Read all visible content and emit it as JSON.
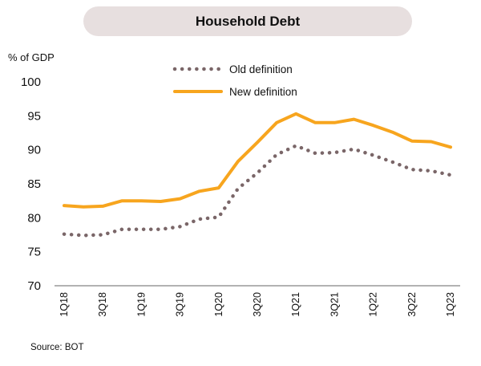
{
  "title": "Household Debt",
  "unit_label": "% of GDP",
  "source": "Source: BOT",
  "colors": {
    "old": "#7a6668",
    "new": "#f7a51e",
    "title_bg": "#e7dfdf",
    "axis": "#666666"
  },
  "chart_data": {
    "type": "line",
    "title": "Household Debt",
    "ylabel": "% of GDP",
    "xlabel": "",
    "ylim": [
      70,
      100
    ],
    "yticks": [
      70,
      75,
      80,
      85,
      90,
      95,
      100
    ],
    "grid": false,
    "legend_position": "top-center",
    "x": [
      "1Q18",
      "2Q18",
      "3Q18",
      "4Q18",
      "1Q19",
      "2Q19",
      "3Q19",
      "4Q19",
      "1Q20",
      "2Q20",
      "3Q20",
      "4Q20",
      "1Q21",
      "2Q21",
      "3Q21",
      "4Q21",
      "1Q22",
      "2Q22",
      "3Q22",
      "4Q22",
      "1Q23"
    ],
    "xtick_labels": [
      "1Q18",
      "3Q18",
      "1Q19",
      "3Q19",
      "1Q20",
      "3Q20",
      "1Q21",
      "3Q21",
      "1Q22",
      "3Q22",
      "1Q23"
    ],
    "series": [
      {
        "name": "Old definition",
        "style": "dotted",
        "values": [
          77.6,
          77.4,
          77.5,
          78.3,
          78.3,
          78.3,
          78.7,
          79.8,
          80.1,
          84.3,
          86.6,
          89.3,
          90.6,
          89.5,
          89.6,
          90.1,
          89.2,
          88.2,
          87.1,
          86.9,
          86.3
        ]
      },
      {
        "name": "New definition",
        "style": "solid",
        "values": [
          81.8,
          81.6,
          81.7,
          82.5,
          82.5,
          82.4,
          82.8,
          83.9,
          84.4,
          88.3,
          91.1,
          94.0,
          95.3,
          94.0,
          94.0,
          94.5,
          93.6,
          92.6,
          91.3,
          91.2,
          90.4
        ]
      }
    ]
  }
}
